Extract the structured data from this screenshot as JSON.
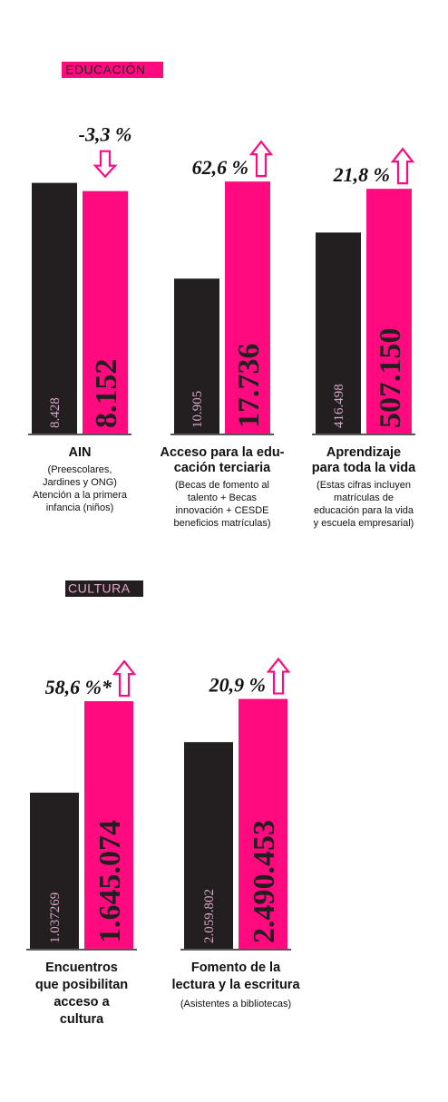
{
  "sections": [
    "EDUCACIÓN",
    "CULTURA"
  ],
  "chart_data": [
    {
      "type": "bar",
      "section": 0,
      "title": [
        "AIN"
      ],
      "subtitle": [
        "(Preescolares,",
        "Jardines y ONG)",
        "Atención a la primera",
        "infancia (niños)"
      ],
      "change": "-3,3 %",
      "change_direction": "down",
      "values": [
        8428,
        8152
      ],
      "value_labels": [
        "8.428",
        "8.152"
      ],
      "colors": [
        "#231f20",
        "#ff0a7f"
      ],
      "ylim": [
        0,
        8600
      ]
    },
    {
      "type": "bar",
      "section": 0,
      "title": [
        "Acceso para la edu-",
        "cación terciaria"
      ],
      "subtitle": [
        "(Becas de fomento al",
        "talento + Becas",
        "innovación + CESDE",
        "beneficios matrículas)"
      ],
      "change": "62,6 %",
      "change_direction": "up",
      "values": [
        10905,
        17736
      ],
      "value_labels": [
        "10.905",
        "17.736"
      ],
      "colors": [
        "#231f20",
        "#ff0a7f"
      ],
      "ylim": [
        0,
        18000
      ]
    },
    {
      "type": "bar",
      "section": 0,
      "title": [
        "Aprendizaje",
        "para toda la vida"
      ],
      "subtitle": [
        "(Estas cifras incluyen",
        "matrículas de",
        "educación para la vida",
        "y escuela empresarial)"
      ],
      "change": "21,8 %",
      "change_direction": "up",
      "values": [
        416498,
        507150
      ],
      "value_labels": [
        "416.498",
        "507.150"
      ],
      "colors": [
        "#231f20",
        "#ff0a7f"
      ],
      "ylim": [
        0,
        530000
      ]
    },
    {
      "type": "bar",
      "section": 1,
      "title": [
        "Encuentros",
        "que posibilitan",
        "acceso a",
        "cultura"
      ],
      "subtitle": [],
      "change": "58,6 %*",
      "change_direction": "up",
      "values": [
        1037269,
        1645074
      ],
      "value_labels": [
        "1.037269",
        "1.645.074"
      ],
      "colors": [
        "#231f20",
        "#ff0a7f"
      ],
      "ylim": [
        0,
        1700000
      ]
    },
    {
      "type": "bar",
      "section": 1,
      "title": [
        "Fomento de la",
        "lectura y la escritura"
      ],
      "subtitle": [
        "(Asistentes a bibliotecas)"
      ],
      "change": "20,9 %",
      "change_direction": "up",
      "values": [
        2059802,
        2490453
      ],
      "value_labels": [
        "2.059.802",
        "2.490.453"
      ],
      "colors": [
        "#231f20",
        "#ff0a7f"
      ],
      "ylim": [
        0,
        2550000
      ]
    }
  ]
}
